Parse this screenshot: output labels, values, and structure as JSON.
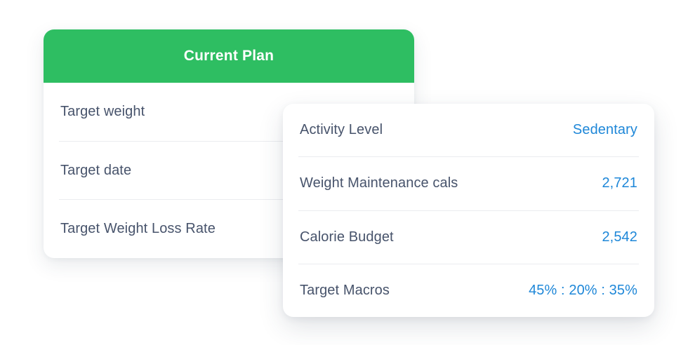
{
  "colors": {
    "header_green": "#2EBE62",
    "value_blue": "#1E87D8",
    "label_slate": "#47536B",
    "divider": "#EBECEF",
    "card_background": "#FFFFFF"
  },
  "current_plan_card": {
    "title": "Current Plan",
    "rows": [
      {
        "label": "Target weight"
      },
      {
        "label": "Target date"
      },
      {
        "label": "Target Weight Loss Rate"
      }
    ]
  },
  "settings_card": {
    "rows": [
      {
        "label": "Activity Level",
        "value": "Sedentary"
      },
      {
        "label": "Weight Maintenance cals",
        "value": "2,721"
      },
      {
        "label": "Calorie Budget",
        "value": "2,542"
      },
      {
        "label": "Target Macros",
        "value": "45% : 20% : 35%"
      }
    ]
  }
}
